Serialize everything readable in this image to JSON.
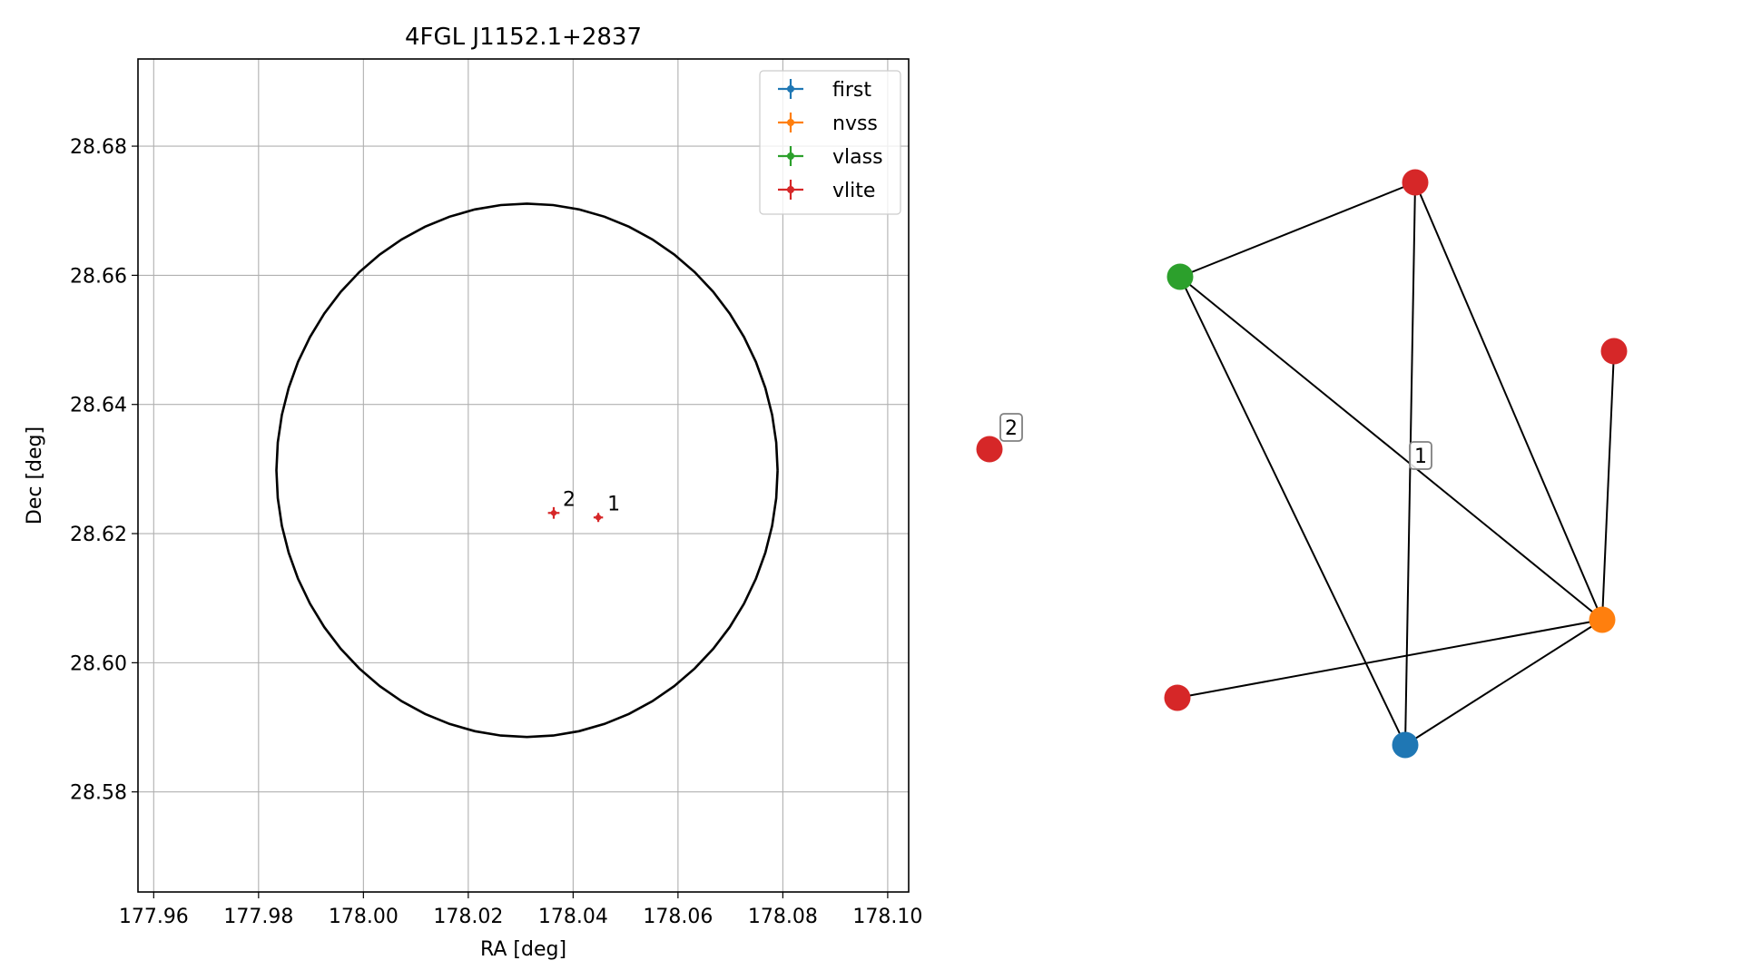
{
  "chart_data": [
    {
      "type": "scatter",
      "title": "4FGL J1152.1+2837",
      "xlabel": "RA [deg]",
      "ylabel": "Dec [deg]",
      "xlim": [
        177.957,
        178.104
      ],
      "ylim": [
        28.5645,
        28.6935
      ],
      "grid": true,
      "x_ticks": [
        177.96,
        177.98,
        178.0,
        178.02,
        178.04,
        178.06,
        178.08,
        178.1
      ],
      "y_ticks": [
        28.58,
        28.6,
        28.62,
        28.64,
        28.66,
        28.68
      ],
      "x_tick_labels": [
        "177.96",
        "177.98",
        "178.00",
        "178.02",
        "178.04",
        "178.06",
        "178.08",
        "178.10"
      ],
      "y_tick_labels": [
        "28.58",
        "28.60",
        "28.62",
        "28.64",
        "28.66",
        "28.68"
      ],
      "legend": {
        "placement": "top-right",
        "entries": [
          {
            "label": "first",
            "color": "#1f77b4"
          },
          {
            "label": "nvss",
            "color": "#ff7f0e"
          },
          {
            "label": "vlass",
            "color": "#2ca02c"
          },
          {
            "label": "vlite",
            "color": "#d62728"
          }
        ]
      },
      "ellipse": {
        "center_ra": 178.0312,
        "center_dec": 28.6298,
        "half_width_ra": 0.0478,
        "half_height_dec": 0.0413,
        "color": "#000000"
      },
      "sources": [
        {
          "label": "2",
          "survey": "vlite",
          "ra": 178.0363,
          "dec": 28.6232,
          "ra_err": 0.0011,
          "dec_err": 0.0009,
          "color": "#d62728"
        },
        {
          "label": "1",
          "survey": "vlite",
          "ra": 178.0448,
          "dec": 28.6225,
          "ra_err": 0.0009,
          "dec_err": 0.0007,
          "color": "#d62728"
        }
      ]
    },
    {
      "type": "network",
      "nodes": [
        {
          "id": "n_red_top",
          "survey": "vlite",
          "color": "#d62728"
        },
        {
          "id": "n_green",
          "survey": "vlass",
          "color": "#2ca02c"
        },
        {
          "id": "n_red_right",
          "survey": "vlite",
          "color": "#d62728"
        },
        {
          "id": "n_red_isolated",
          "survey": "vlite",
          "color": "#d62728",
          "label": "2"
        },
        {
          "id": "n_orange",
          "survey": "nvss",
          "color": "#ff7f0e"
        },
        {
          "id": "n_red_bottom_left",
          "survey": "vlite",
          "color": "#d62728"
        },
        {
          "id": "n_blue",
          "survey": "first",
          "color": "#1f77b4"
        }
      ],
      "edges": [
        [
          "n_green",
          "n_red_top"
        ],
        [
          "n_green",
          "n_blue"
        ],
        [
          "n_green",
          "n_orange"
        ],
        [
          "n_red_top",
          "n_blue"
        ],
        [
          "n_red_top",
          "n_orange"
        ],
        [
          "n_red_right",
          "n_orange"
        ],
        [
          "n_red_bottom_left",
          "n_orange"
        ],
        [
          "n_blue",
          "n_orange"
        ]
      ],
      "group_labels": [
        {
          "text": "1",
          "anchor": "n_cluster_1"
        }
      ]
    }
  ]
}
